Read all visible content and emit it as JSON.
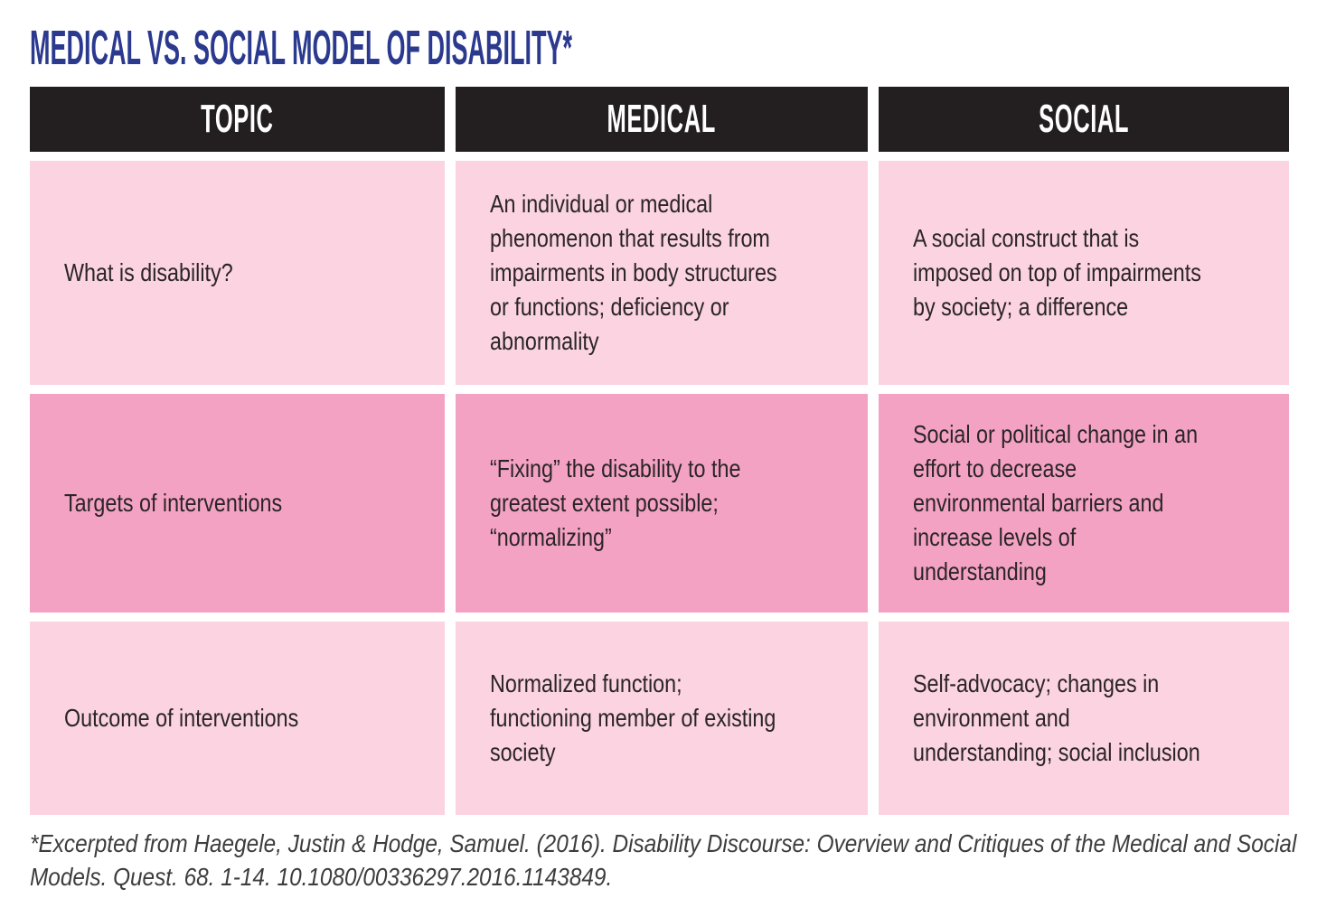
{
  "title": "MEDICAL VS. SOCIAL MODEL OF DISABILITY*",
  "colors": {
    "title_blue": "#2b3a8f",
    "header_bg": "#231f20",
    "header_text": "#ffffff",
    "row_light": "#fbd3e1",
    "row_dark": "#f4a2c3",
    "cell_text": "#2a2526",
    "footnote_text": "#3d3d3d",
    "page_bg": "#ffffff"
  },
  "table": {
    "headers": [
      "TOPIC",
      "MEDICAL",
      "SOCIAL"
    ],
    "rows": [
      {
        "shade": "light",
        "topic": "What is disability?",
        "medical": "An individual or medical phenomenon that results from impairments in body structures or functions; deficiency or abnormality",
        "social": "A social construct that is imposed on top of impairments by society; a difference"
      },
      {
        "shade": "dark",
        "topic": "Targets of interventions",
        "medical": "“Fixing” the disability to the greatest extent possible; “normalizing”",
        "social": "Social or political change in an effort to decrease environmental barriers and increase levels of understanding"
      },
      {
        "shade": "light",
        "topic": "Outcome of interventions",
        "medical": "Normalized function; functioning member of existing society",
        "social": "Self-advocacy; changes in environment and understanding; social inclusion"
      }
    ]
  },
  "footnote": "*Excerpted from Haegele, Justin & Hodge, Samuel. (2016). Disability Discourse: Overview and Critiques of the Medical and Social Models. Quest. 68. 1-14. 10.1080/00336297.2016.1143849."
}
